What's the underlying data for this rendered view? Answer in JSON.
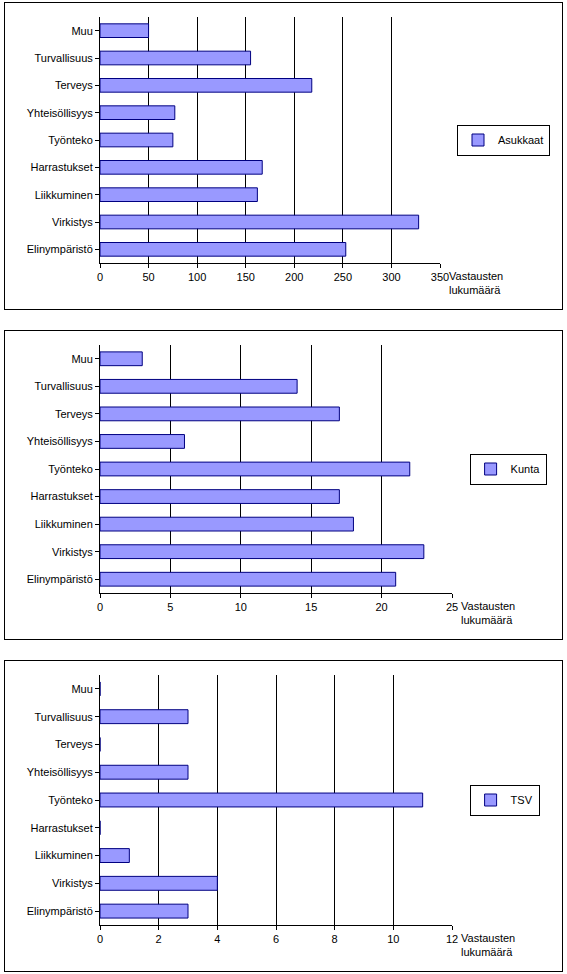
{
  "chart_data": [
    {
      "type": "bar",
      "orientation": "horizontal",
      "categories": [
        "Muu",
        "Turvallisuus",
        "Terveys",
        "Yhteisöllisyys",
        "Työnteko",
        "Harrastukset",
        "Liikkuminen",
        "Virkistys",
        "Elinympäristö"
      ],
      "series": [
        {
          "name": "Asukkaat",
          "color": "#9999ff",
          "values": [
            50,
            155,
            218,
            77,
            75,
            167,
            162,
            328,
            253
          ]
        }
      ],
      "x_label": "Vastausten lukumäärä",
      "xlim": [
        0,
        350
      ],
      "xticks": [
        0,
        50,
        100,
        150,
        200,
        250,
        300,
        350
      ],
      "grid": true,
      "legend": "right"
    },
    {
      "type": "bar",
      "orientation": "horizontal",
      "categories": [
        "Muu",
        "Turvallisuus",
        "Terveys",
        "Yhteisöllisyys",
        "Työnteko",
        "Harrastukset",
        "Liikkuminen",
        "Virkistys",
        "Elinympäristö"
      ],
      "series": [
        {
          "name": "Kunta",
          "color": "#9999ff",
          "values": [
            3,
            14,
            17,
            6,
            22,
            17,
            18,
            23,
            21
          ]
        }
      ],
      "x_label": "Vastausten lukumäärä",
      "xlim": [
        0,
        25
      ],
      "xticks": [
        0,
        5,
        10,
        15,
        20,
        25
      ],
      "grid": true,
      "legend": "right"
    },
    {
      "type": "bar",
      "orientation": "horizontal",
      "categories": [
        "Muu",
        "Turvallisuus",
        "Terveys",
        "Yhteisöllisyys",
        "Työnteko",
        "Harrastukset",
        "Liikkuminen",
        "Virkistys",
        "Elinympäristö"
      ],
      "series": [
        {
          "name": "TSV",
          "color": "#9999ff",
          "values": [
            0,
            3,
            0,
            3,
            11,
            0,
            1,
            4,
            3
          ]
        }
      ],
      "x_label": "Vastausten lukumäärä",
      "xlim": [
        0,
        12
      ],
      "xticks": [
        0,
        2,
        4,
        6,
        8,
        10,
        12
      ],
      "grid": true,
      "legend": "right"
    }
  ]
}
